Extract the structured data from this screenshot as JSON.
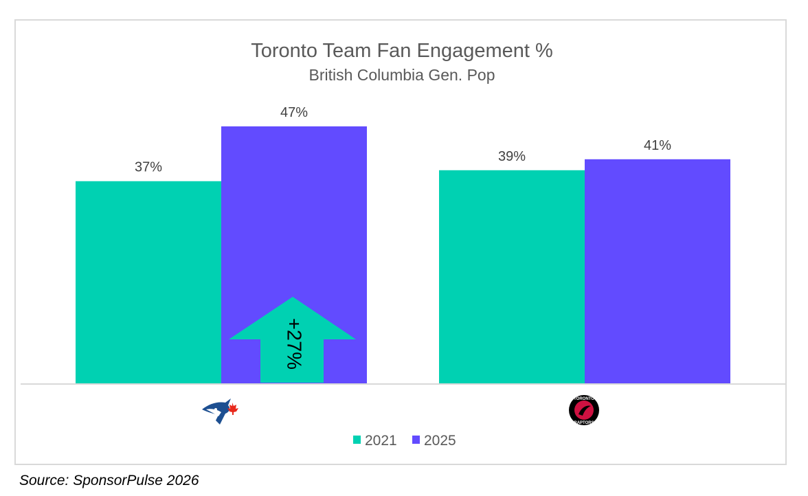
{
  "chart_data": {
    "type": "bar",
    "title": "Toronto Team Fan Engagement %",
    "subtitle": "British Columbia Gen. Pop",
    "categories": [
      "Toronto Blue Jays",
      "Toronto Raptors"
    ],
    "category_labels_shown_as": [
      "blue-jays-logo",
      "raptors-logo"
    ],
    "series": [
      {
        "name": "2021",
        "color": "#00d1b2",
        "values": [
          37,
          39
        ],
        "labels": [
          "37%",
          "39%"
        ]
      },
      {
        "name": "2025",
        "color": "#624bff",
        "values": [
          47,
          41
        ],
        "labels": [
          "47%",
          "41%"
        ]
      }
    ],
    "ylim": [
      0,
      50
    ],
    "grid": false,
    "legend": "bottom",
    "annotation": {
      "text": "+27%",
      "shape": "up-arrow",
      "color": "#00d1b2",
      "category": "Toronto Blue Jays"
    }
  },
  "source": "Source: SponsorPulse 2026"
}
